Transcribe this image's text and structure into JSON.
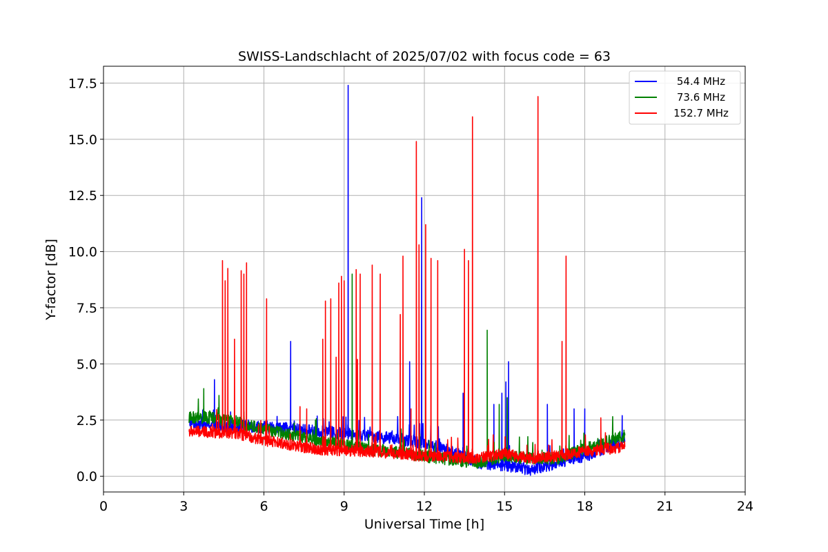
{
  "chart_data": {
    "type": "line",
    "title": "SWISS-Landschlacht of 2025/07/02 with focus code = 63",
    "xlabel": "Universal Time [h]",
    "ylabel": "Y-factor [dB]",
    "xlim": [
      0,
      24
    ],
    "ylim": [
      -0.7,
      18.25
    ],
    "xticks": [
      0,
      3,
      6,
      9,
      12,
      15,
      18,
      21,
      24
    ],
    "xtick_labels": [
      "0",
      "3",
      "6",
      "9",
      "12",
      "15",
      "18",
      "21",
      "24"
    ],
    "yticks": [
      0.0,
      2.5,
      5.0,
      7.5,
      10.0,
      12.5,
      15.0,
      17.5
    ],
    "ytick_labels": [
      "0.0",
      "2.5",
      "5.0",
      "7.5",
      "10.0",
      "12.5",
      "15.0",
      "17.5"
    ],
    "grid": true,
    "legend_position": "top-right",
    "series": [
      {
        "name": "54.4 MHz",
        "color": "#0000ff",
        "baseline": [
          [
            3.2,
            2.4
          ],
          [
            4.0,
            2.3
          ],
          [
            6.0,
            2.2
          ],
          [
            8.0,
            2.0
          ],
          [
            10.0,
            1.8
          ],
          [
            12.0,
            1.5
          ],
          [
            13.0,
            1.1
          ],
          [
            14.0,
            0.6
          ],
          [
            15.0,
            0.5
          ],
          [
            16.0,
            0.3
          ],
          [
            17.0,
            0.6
          ],
          [
            18.0,
            0.9
          ],
          [
            19.5,
            1.6
          ]
        ],
        "noise": 0.55,
        "spikes": [
          [
            4.15,
            4.3
          ],
          [
            7.0,
            6.0
          ],
          [
            9.15,
            17.4
          ],
          [
            11.45,
            5.1
          ],
          [
            11.9,
            12.4
          ],
          [
            13.45,
            3.7
          ],
          [
            14.6,
            3.2
          ],
          [
            14.9,
            3.7
          ],
          [
            15.05,
            4.2
          ],
          [
            15.15,
            5.1
          ],
          [
            16.6,
            3.2
          ],
          [
            17.6,
            3.0
          ],
          [
            18.0,
            3.0
          ],
          [
            19.4,
            2.7
          ]
        ]
      },
      {
        "name": "73.6 MHz",
        "color": "#008000",
        "baseline": [
          [
            3.2,
            2.6
          ],
          [
            4.0,
            2.6
          ],
          [
            5.0,
            2.4
          ],
          [
            6.0,
            2.1
          ],
          [
            8.0,
            1.6
          ],
          [
            10.0,
            1.2
          ],
          [
            12.0,
            0.9
          ],
          [
            14.0,
            0.6
          ],
          [
            15.0,
            0.9
          ],
          [
            16.0,
            0.8
          ],
          [
            17.0,
            0.8
          ],
          [
            18.0,
            1.2
          ],
          [
            19.5,
            1.8
          ]
        ],
        "noise": 0.55,
        "spikes": [
          [
            3.75,
            3.9
          ],
          [
            9.3,
            9.0
          ],
          [
            14.35,
            6.5
          ],
          [
            15.1,
            3.5
          ],
          [
            14.8,
            3.2
          ]
        ]
      },
      {
        "name": "152.7 MHz",
        "color": "#ff0000",
        "baseline": [
          [
            3.2,
            2.0
          ],
          [
            5.0,
            1.9
          ],
          [
            6.0,
            1.6
          ],
          [
            7.0,
            1.4
          ],
          [
            8.0,
            1.2
          ],
          [
            10.0,
            1.1
          ],
          [
            12.0,
            0.9
          ],
          [
            14.0,
            0.8
          ],
          [
            15.0,
            1.0
          ],
          [
            16.0,
            0.8
          ],
          [
            17.0,
            0.9
          ],
          [
            18.0,
            1.1
          ],
          [
            19.5,
            1.3
          ]
        ],
        "noise": 0.5,
        "spikes": [
          [
            4.45,
            9.6
          ],
          [
            4.55,
            8.7
          ],
          [
            4.65,
            9.25
          ],
          [
            4.9,
            6.1
          ],
          [
            5.15,
            9.15
          ],
          [
            5.25,
            9.0
          ],
          [
            5.35,
            9.5
          ],
          [
            6.1,
            7.9
          ],
          [
            7.35,
            3.1
          ],
          [
            7.6,
            3.0
          ],
          [
            8.2,
            6.1
          ],
          [
            8.3,
            7.8
          ],
          [
            8.5,
            7.9
          ],
          [
            8.7,
            5.3
          ],
          [
            8.8,
            8.6
          ],
          [
            8.9,
            8.9
          ],
          [
            9.0,
            8.7
          ],
          [
            9.45,
            9.2
          ],
          [
            9.5,
            5.2
          ],
          [
            9.6,
            9.0
          ],
          [
            10.05,
            9.4
          ],
          [
            10.35,
            9.0
          ],
          [
            11.1,
            7.2
          ],
          [
            11.2,
            9.8
          ],
          [
            11.5,
            3.0
          ],
          [
            11.7,
            14.9
          ],
          [
            11.8,
            10.3
          ],
          [
            12.05,
            11.2
          ],
          [
            12.25,
            9.7
          ],
          [
            12.5,
            9.6
          ],
          [
            13.5,
            10.1
          ],
          [
            13.65,
            9.6
          ],
          [
            13.8,
            16.0
          ],
          [
            16.25,
            16.9
          ],
          [
            17.15,
            6.0
          ],
          [
            17.3,
            9.8
          ],
          [
            18.6,
            2.6
          ]
        ]
      }
    ]
  }
}
